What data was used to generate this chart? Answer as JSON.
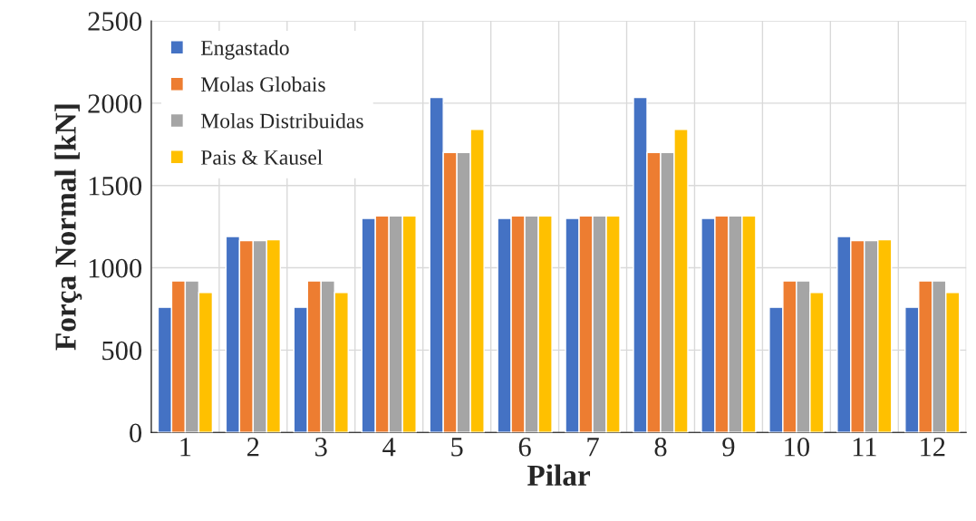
{
  "chart_data": {
    "type": "bar",
    "xlabel": "Pilar",
    "ylabel": "Força Normal [kN]",
    "categories": [
      "1",
      "2",
      "3",
      "4",
      "5",
      "6",
      "7",
      "8",
      "9",
      "10",
      "11",
      "12"
    ],
    "series": [
      {
        "name": "Engastado",
        "color": "#4472c4",
        "values": [
          760,
          1190,
          760,
          1300,
          2035,
          1300,
          1300,
          2035,
          1300,
          760,
          1190,
          760
        ]
      },
      {
        "name": "Molas Globais",
        "color": "#ed7d31",
        "values": [
          920,
          1165,
          920,
          1315,
          1700,
          1315,
          1315,
          1700,
          1315,
          920,
          1165,
          920
        ]
      },
      {
        "name": "Molas Distribuidas",
        "color": "#a5a5a5",
        "values": [
          920,
          1165,
          920,
          1315,
          1700,
          1315,
          1315,
          1700,
          1315,
          920,
          1165,
          920
        ]
      },
      {
        "name": "Pais & Kausel",
        "color": "#ffc000",
        "values": [
          850,
          1170,
          850,
          1315,
          1840,
          1315,
          1315,
          1840,
          1315,
          850,
          1170,
          850
        ]
      }
    ],
    "ylim": [
      0,
      2500
    ],
    "yticks": [
      0,
      500,
      1000,
      1500,
      2000,
      2500
    ],
    "grid": true,
    "legend": "top left"
  }
}
